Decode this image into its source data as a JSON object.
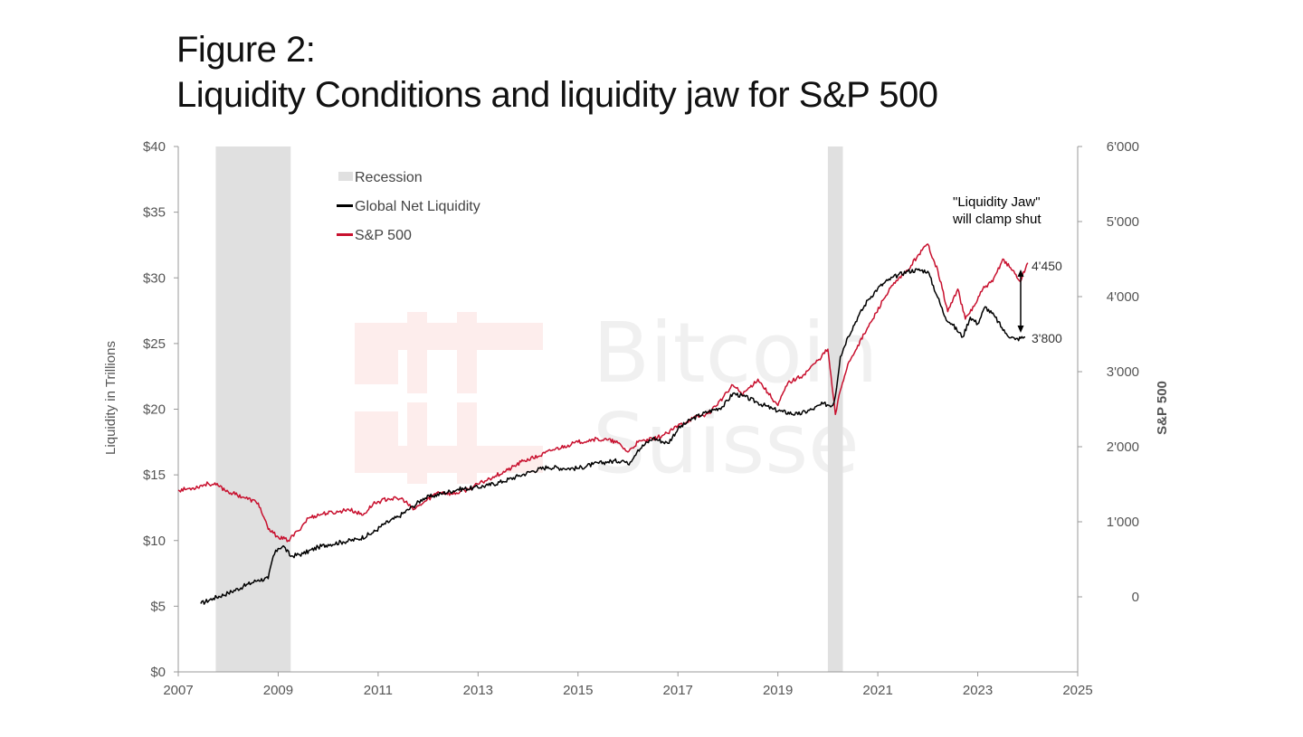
{
  "figure": {
    "label": "Figure 2:",
    "title": "Liquidity Conditions and liquidity jaw for S&P 500"
  },
  "watermark": {
    "line1": "Bitcoin",
    "line2": "Suisse"
  },
  "chart_data": {
    "type": "line",
    "x_axis": {
      "range": [
        2007,
        2025
      ],
      "ticks": [
        "2007",
        "2009",
        "2011",
        "2013",
        "2015",
        "2017",
        "2019",
        "2021",
        "2023",
        "2025"
      ]
    },
    "y_left": {
      "label": "Liquidity in Trillions",
      "range": [
        0,
        40
      ],
      "ticks": [
        "$0",
        "$5",
        "$10",
        "$15",
        "$20",
        "$25",
        "$30",
        "$35",
        "$40"
      ]
    },
    "y_right": {
      "label": "S&P 500",
      "range": [
        -1000,
        6000
      ],
      "ticks": [
        "0",
        "1'000",
        "2'000",
        "3'000",
        "4'000",
        "5'000",
        "6'000"
      ],
      "tick_values": [
        0,
        1000,
        2000,
        3000,
        4000,
        5000,
        6000
      ]
    },
    "recessions": [
      {
        "start": 2007.75,
        "end": 2009.25
      },
      {
        "start": 2020.0,
        "end": 2020.3
      }
    ],
    "legend": {
      "placement": "top-left",
      "entries": [
        {
          "label": "Recession",
          "color": "#e0e0e0"
        },
        {
          "label": "Global Net Liquidity",
          "color": "#000000"
        },
        {
          "label": "S&P 500",
          "color": "#c8102e"
        }
      ]
    },
    "series": [
      {
        "name": "Global Net Liquidity",
        "axis": "left",
        "color": "#000000",
        "x": [
          2007.45,
          2007.7,
          2008.0,
          2008.3,
          2008.6,
          2008.8,
          2008.9,
          2009.0,
          2009.1,
          2009.25,
          2009.5,
          2009.8,
          2010.0,
          2010.3,
          2010.6,
          2010.9,
          2011.1,
          2011.4,
          2011.7,
          2011.9,
          2012.1,
          2012.3,
          2012.6,
          2012.9,
          2013.2,
          2013.5,
          2013.8,
          2014.1,
          2014.4,
          2014.7,
          2015.0,
          2015.3,
          2015.6,
          2015.9,
          2016.0,
          2016.2,
          2016.5,
          2016.8,
          2017.0,
          2017.3,
          2017.6,
          2017.9,
          2018.1,
          2018.3,
          2018.6,
          2018.9,
          2019.1,
          2019.4,
          2019.7,
          2019.9,
          2020.1,
          2020.15,
          2020.25,
          2020.4,
          2020.6,
          2020.8,
          2021.0,
          2021.2,
          2021.4,
          2021.6,
          2021.8,
          2022.0,
          2022.2,
          2022.35,
          2022.5,
          2022.7,
          2022.85,
          2023.0,
          2023.15,
          2023.35,
          2023.55,
          2023.75,
          2023.95
        ],
        "values": [
          5.2,
          5.6,
          6.0,
          6.5,
          7.0,
          7.1,
          8.8,
          9.4,
          9.6,
          8.8,
          9.0,
          9.5,
          9.7,
          9.9,
          10.1,
          10.6,
          11.2,
          11.8,
          12.6,
          13.2,
          13.4,
          13.6,
          13.9,
          14.0,
          14.2,
          14.5,
          14.9,
          15.3,
          15.6,
          15.5,
          15.5,
          15.8,
          16.0,
          16.1,
          15.8,
          16.9,
          17.8,
          17.4,
          18.5,
          19.3,
          19.8,
          20.2,
          21.2,
          21.0,
          20.5,
          20.0,
          19.8,
          19.6,
          20.0,
          20.4,
          20.3,
          21.0,
          24.0,
          25.5,
          27.0,
          28.3,
          29.2,
          29.8,
          30.2,
          30.5,
          30.6,
          30.5,
          28.5,
          27.0,
          26.4,
          25.5,
          27.0,
          26.5,
          27.8,
          27.0,
          25.8,
          25.3,
          25.5
        ]
      },
      {
        "name": "S&P 500",
        "axis": "right",
        "color": "#c8102e",
        "x": [
          2007.0,
          2007.3,
          2007.6,
          2007.8,
          2008.0,
          2008.3,
          2008.6,
          2008.8,
          2008.9,
          2009.0,
          2009.2,
          2009.4,
          2009.6,
          2009.9,
          2010.2,
          2010.4,
          2010.7,
          2010.9,
          2011.2,
          2011.5,
          2011.7,
          2011.9,
          2012.2,
          2012.5,
          2012.8,
          2013.0,
          2013.3,
          2013.6,
          2013.9,
          2014.2,
          2014.5,
          2014.8,
          2015.0,
          2015.3,
          2015.6,
          2015.8,
          2016.0,
          2016.2,
          2016.5,
          2016.8,
          2017.0,
          2017.3,
          2017.6,
          2017.9,
          2018.1,
          2018.3,
          2018.6,
          2018.8,
          2019.0,
          2019.2,
          2019.5,
          2019.8,
          2020.0,
          2020.15,
          2020.25,
          2020.4,
          2020.6,
          2020.9,
          2021.1,
          2021.3,
          2021.6,
          2021.8,
          2022.0,
          2022.2,
          2022.4,
          2022.6,
          2022.75,
          2022.95,
          2023.1,
          2023.3,
          2023.5,
          2023.7,
          2023.85,
          2024.0
        ],
        "values": [
          1420,
          1450,
          1510,
          1480,
          1400,
          1330,
          1250,
          900,
          850,
          800,
          750,
          880,
          1050,
          1110,
          1130,
          1170,
          1090,
          1240,
          1310,
          1300,
          1160,
          1250,
          1400,
          1370,
          1430,
          1500,
          1600,
          1690,
          1810,
          1870,
          1960,
          2020,
          2060,
          2100,
          2090,
          2050,
          1930,
          2060,
          2100,
          2180,
          2280,
          2380,
          2440,
          2650,
          2820,
          2700,
          2900,
          2720,
          2550,
          2850,
          2950,
          3150,
          3300,
          2430,
          2750,
          3100,
          3350,
          3700,
          3950,
          4150,
          4350,
          4550,
          4700,
          4350,
          3800,
          4100,
          3700,
          3900,
          4100,
          4200,
          4500,
          4350,
          4200,
          4450
        ]
      }
    ],
    "annotations": [
      {
        "text_line1": "\"Liquidity Jaw\"",
        "text_line2": "will clamp shut",
        "x": 2022.7,
        "y_right": 5200
      },
      {
        "text": "4'450",
        "series": "S&P 500",
        "x": 2024.0,
        "y_right": 4450
      },
      {
        "text": "3'800",
        "series": "Global Net Liquidity",
        "x": 2024.0,
        "y_right": 3500
      }
    ]
  }
}
